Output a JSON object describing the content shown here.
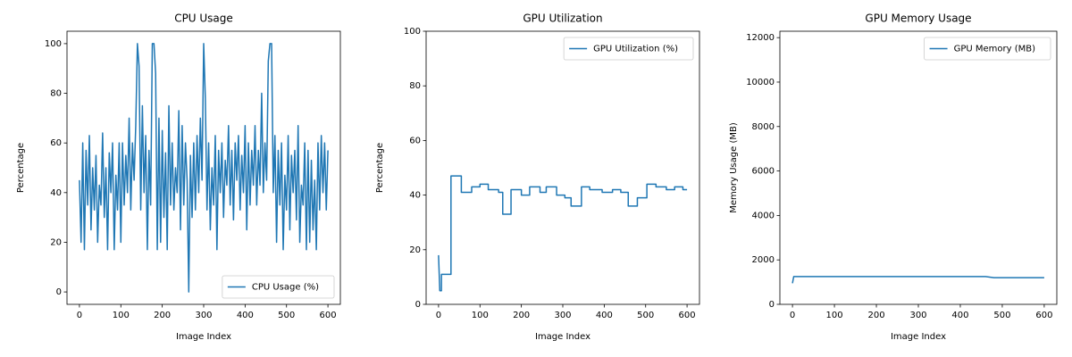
{
  "chart_data": [
    {
      "type": "line",
      "title": "CPU Usage",
      "xlabel": "Image Index",
      "ylabel": "Percentage",
      "x": [
        0,
        4,
        8,
        12,
        16,
        20,
        24,
        28,
        32,
        36,
        40,
        44,
        48,
        52,
        56,
        60,
        64,
        68,
        72,
        76,
        80,
        84,
        88,
        92,
        96,
        100,
        104,
        108,
        112,
        116,
        120,
        124,
        128,
        132,
        136,
        140,
        144,
        148,
        152,
        156,
        160,
        164,
        168,
        172,
        176,
        180,
        184,
        188,
        192,
        196,
        200,
        204,
        208,
        212,
        216,
        220,
        224,
        228,
        232,
        236,
        240,
        244,
        248,
        252,
        256,
        260,
        264,
        268,
        272,
        276,
        280,
        284,
        288,
        292,
        296,
        300,
        304,
        308,
        312,
        316,
        320,
        324,
        328,
        332,
        336,
        340,
        344,
        348,
        352,
        356,
        360,
        364,
        368,
        372,
        376,
        380,
        384,
        388,
        392,
        396,
        400,
        404,
        408,
        412,
        416,
        420,
        424,
        428,
        432,
        436,
        440,
        444,
        448,
        452,
        456,
        460,
        464,
        468,
        472,
        476,
        480,
        484,
        488,
        492,
        496,
        500,
        504,
        508,
        512,
        516,
        520,
        524,
        528,
        532,
        536,
        540,
        544,
        548,
        552,
        556,
        560,
        564,
        568,
        572,
        576,
        580,
        584,
        588,
        592,
        596,
        600
      ],
      "series": [
        {
          "name": "CPU Usage (%)",
          "color": "#1f77b4",
          "values": [
            45,
            20,
            60,
            17,
            57,
            35,
            63,
            25,
            50,
            33,
            55,
            20,
            43,
            35,
            64,
            30,
            50,
            17,
            56,
            40,
            60,
            17,
            47,
            33,
            60,
            20,
            60,
            35,
            55,
            40,
            70,
            33,
            60,
            45,
            67,
            100,
            91,
            33,
            75,
            40,
            63,
            17,
            57,
            35,
            100,
            100,
            88,
            17,
            70,
            20,
            65,
            30,
            56,
            17,
            75,
            35,
            60,
            33,
            50,
            40,
            73,
            25,
            67,
            35,
            60,
            45,
            0,
            55,
            30,
            60,
            33,
            63,
            40,
            70,
            45,
            100,
            78,
            33,
            60,
            25,
            50,
            35,
            63,
            17,
            57,
            40,
            60,
            30,
            53,
            43,
            67,
            35,
            57,
            29,
            60,
            45,
            63,
            33,
            55,
            40,
            67,
            25,
            60,
            35,
            57,
            43,
            67,
            35,
            57,
            43,
            80,
            40,
            60,
            45,
            93,
            100,
            100,
            40,
            63,
            20,
            57,
            35,
            60,
            17,
            47,
            33,
            63,
            25,
            55,
            40,
            57,
            29,
            67,
            20,
            43,
            35,
            60,
            17,
            57,
            20,
            53,
            25,
            45,
            17,
            60,
            33,
            63,
            40,
            60,
            33,
            57
          ]
        }
      ],
      "xlim": [
        -30,
        630
      ],
      "ylim": [
        -5,
        105
      ],
      "xticks": [
        0,
        100,
        200,
        300,
        400,
        500,
        600
      ],
      "yticks": [
        0,
        20,
        40,
        60,
        80,
        100
      ],
      "legend": "lower right"
    },
    {
      "type": "line",
      "title": "GPU Utilization",
      "xlabel": "Image Index",
      "ylabel": "Percentage",
      "x": [
        0,
        3,
        7,
        7,
        30,
        30,
        55,
        55,
        80,
        80,
        100,
        100,
        120,
        120,
        145,
        145,
        155,
        155,
        175,
        175,
        200,
        200,
        220,
        220,
        245,
        245,
        260,
        260,
        285,
        285,
        305,
        305,
        320,
        320,
        345,
        345,
        365,
        365,
        395,
        395,
        420,
        420,
        440,
        440,
        458,
        458,
        480,
        480,
        503,
        503,
        525,
        525,
        550,
        550,
        570,
        570,
        590,
        590,
        600
      ],
      "series": [
        {
          "name": "GPU Utilization (%)",
          "color": "#1f77b4",
          "values": [
            18,
            5,
            5,
            11,
            11,
            47,
            47,
            41,
            41,
            43,
            43,
            44,
            44,
            42,
            42,
            41,
            41,
            33,
            33,
            42,
            42,
            40,
            40,
            43,
            43,
            41,
            41,
            43,
            43,
            40,
            40,
            39,
            39,
            36,
            36,
            43,
            43,
            42,
            42,
            41,
            41,
            42,
            42,
            41,
            41,
            36,
            36,
            39,
            39,
            44,
            44,
            43,
            43,
            42,
            42,
            43,
            43,
            42,
            42
          ]
        }
      ],
      "xlim": [
        -30,
        630
      ],
      "ylim": [
        0,
        100
      ],
      "xticks": [
        0,
        100,
        200,
        300,
        400,
        500,
        600
      ],
      "yticks": [
        0,
        20,
        40,
        60,
        80,
        100
      ],
      "legend": "upper right"
    },
    {
      "type": "line",
      "title": "GPU Memory Usage",
      "xlabel": "Image Index",
      "ylabel": "Memory Usage (MB)",
      "x": [
        0,
        3,
        460,
        480,
        600
      ],
      "series": [
        {
          "name": "GPU Memory (MB)",
          "color": "#1f77b4",
          "values": [
            950,
            1250,
            1250,
            1200,
            1200
          ]
        }
      ],
      "xlim": [
        -30,
        630
      ],
      "ylim": [
        0,
        12288
      ],
      "xticks": [
        0,
        100,
        200,
        300,
        400,
        500,
        600
      ],
      "yticks": [
        0,
        2000,
        4000,
        6000,
        8000,
        10000,
        12000
      ],
      "legend": "upper right"
    }
  ]
}
